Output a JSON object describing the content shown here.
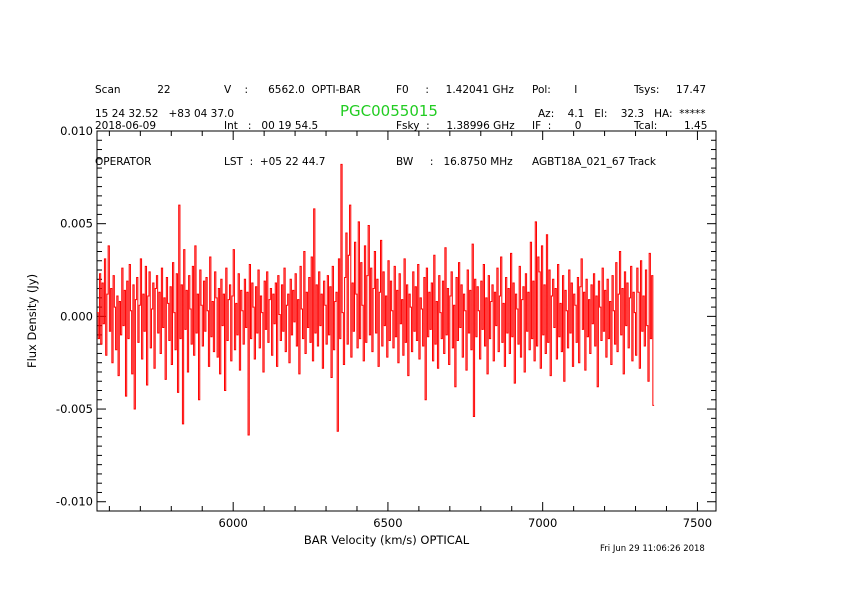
{
  "header": {
    "col1": [
      "Scan           22",
      "2018-06-09",
      "OPERATOR"
    ],
    "col2": [
      "V    :      6562.0  OPTI-BAR",
      "Int   :   00 19 54.5",
      "LST  :  +05 22 44.7"
    ],
    "col3": [
      "F0     :     1.42041 GHz",
      "Fsky  :     1.38996 GHz",
      "BW     :   16.8750 MHz"
    ],
    "col4": [
      "Pol:       I",
      "IF  :       0",
      "AGBT18A_021_67 Track"
    ],
    "col5": [
      "Tsys:     17.47",
      "Tcal:        1.45",
      ""
    ],
    "coords": "15 24 32.52   +83 04 37.0",
    "source": "PGC0055015",
    "azel": "Az:    4.1   El:    32.3   HA:  *****",
    "footer": "Fri Jun 29 11:06:26 2018"
  },
  "colors": {
    "trace": "#ff0000",
    "source": "#22cc22",
    "axes": "#000000"
  },
  "chart_data": {
    "type": "line",
    "xlabel": "BAR Velocity (km/s) OPTICAL",
    "ylabel": "Flux Density (Jy)",
    "xlim": [
      5560,
      7560
    ],
    "ylim": [
      -0.0105,
      0.01
    ],
    "xticks": [
      6000,
      6500,
      7000,
      7500
    ],
    "xtick_labels": [
      "6000",
      "6500",
      "7000",
      "7500"
    ],
    "yticks": [
      -0.01,
      -0.005,
      0.0,
      0.005,
      0.01
    ],
    "ytick_labels": [
      "-0.010",
      "-0.005",
      "0.000",
      "0.005",
      "0.010"
    ],
    "grid": false,
    "series": [
      {
        "x_start": 5560,
        "x_step": 4.0,
        "values": [
          0.0002,
          -0.0012,
          0.0023,
          -0.0015,
          0.0018,
          -0.0004,
          0.0031,
          -0.0021,
          0.0012,
          0.0038,
          -0.0008,
          0.0015,
          -0.0025,
          0.0022,
          0.0005,
          -0.0018,
          0.0011,
          -0.0032,
          0.0008,
          -0.001,
          0.0026,
          -0.0005,
          0.0014,
          -0.0043,
          0.0019,
          -0.0012,
          0.0028,
          0.0003,
          -0.0031,
          0.0017,
          -0.005,
          0.0009,
          0.0021,
          -0.0014,
          0.0006,
          0.0031,
          -0.0023,
          0.0012,
          -0.0008,
          0.0027,
          -0.0037,
          0.0011,
          0.0024,
          -0.0017,
          0.0004,
          0.0018,
          -0.0028,
          0.0015,
          0.0022,
          -0.0009,
          0.0013,
          -0.002,
          0.0026,
          -0.0006,
          0.001,
          -0.0034,
          0.0021,
          0.0007,
          -0.0013,
          0.0016,
          -0.0026,
          0.0029,
          0.0002,
          -0.0018,
          0.0023,
          -0.0041,
          0.006,
          -0.0012,
          0.0017,
          -0.0058,
          0.0036,
          -0.0007,
          0.0014,
          -0.003,
          0.0022,
          0.0004,
          -0.0015,
          0.0027,
          -0.0021,
          0.0038,
          -0.0009,
          0.0012,
          -0.0045,
          0.0025,
          0.0006,
          -0.0016,
          0.0019,
          -0.0008,
          0.0021,
          0.0003,
          -0.0027,
          0.0032,
          -0.0011,
          0.0008,
          -0.0019,
          0.0024,
          0.001,
          -0.0022,
          0.0015,
          -0.0031,
          0.002,
          -0.0005,
          0.0012,
          -0.004,
          0.0026,
          -0.0013,
          0.0009,
          0.0017,
          -0.0024,
          0.0011,
          0.0036,
          -0.0018,
          0.0007,
          -0.001,
          0.0023,
          -0.0029,
          0.0014,
          0.0003,
          -0.0015,
          0.002,
          -0.0006,
          0.0013,
          -0.0064,
          0.0028,
          -0.0012,
          0.0018,
          0.0005,
          -0.0023,
          0.0016,
          -0.0009,
          0.0025,
          -0.0017,
          0.0011,
          0.0002,
          -0.003,
          0.0019,
          -0.0007,
          0.0024,
          -0.0014,
          0.0009,
          0.0015,
          -0.0021,
          0.0012,
          -0.0004,
          0.0018,
          -0.0027,
          0.0022,
          0.0001,
          -0.0013,
          0.0017,
          -0.0008,
          0.0026,
          -0.0019,
          0.0006,
          0.0012,
          -0.0025,
          0.002,
          -0.001,
          0.0014,
          -0.0003,
          0.0023,
          -0.0016,
          0.0009,
          -0.0031,
          0.0027,
          0.0004,
          -0.0012,
          0.0035,
          -0.002,
          0.0013,
          -0.0006,
          0.0021,
          -0.0014,
          0.0032,
          -0.0024,
          0.0058,
          -0.0009,
          0.0017,
          -0.0016,
          0.0024,
          -0.0005,
          0.0012,
          -0.0028,
          0.0019,
          0.0006,
          -0.0015,
          0.0022,
          -0.001,
          0.0016,
          -0.0033,
          0.0027,
          -0.0018,
          0.0008,
          0.0013,
          -0.0062,
          0.0031,
          -0.0012,
          0.0082,
          0.0002,
          -0.0026,
          0.0021,
          0.0045,
          -0.0015,
          0.0033,
          0.006,
          -0.0022,
          0.0018,
          -0.0008,
          0.004,
          0.0012,
          -0.0017,
          0.0051,
          -0.0012,
          0.0029,
          0.0006,
          -0.0024,
          0.0038,
          -0.0014,
          0.0022,
          0.0049,
          -0.001,
          0.0026,
          -0.0019,
          0.0015,
          0.0035,
          -0.0009,
          0.002,
          -0.0027,
          0.0013,
          0.0041,
          -0.0016,
          0.0024,
          -0.0005,
          0.0011,
          -0.0022,
          0.003,
          -0.0013,
          0.0019,
          0.0003,
          -0.0017,
          0.0027,
          -0.0011,
          0.0014,
          -0.0025,
          0.0023,
          -0.0004,
          0.0009,
          -0.0021,
          0.0031,
          -0.0014,
          0.0017,
          -0.0032,
          0.0012,
          0.0005,
          -0.0019,
          0.0024,
          -0.0008,
          0.0016,
          -0.0013,
          0.0028,
          -0.0023,
          0.001,
          0.0004,
          -0.0016,
          0.0021,
          -0.0045,
          0.0026,
          -0.0011,
          0.0013,
          -0.0007,
          0.0018,
          -0.0024,
          0.0033,
          -0.0015,
          0.0008,
          -0.0028,
          0.0022,
          0.0002,
          -0.0012,
          0.0019,
          -0.002,
          0.0037,
          -0.001,
          0.0015,
          -0.0026,
          0.0011,
          0.0024,
          -0.0017,
          0.0006,
          -0.0038,
          0.0021,
          -0.0013,
          0.0029,
          -0.0006,
          0.0017,
          -0.0022,
          0.0012,
          0.0003,
          -0.0029,
          0.0025,
          -0.0009,
          0.0014,
          -0.0018,
          0.0039,
          -0.0054,
          0.002,
          -0.0011,
          0.0016,
          0.0003,
          -0.0023,
          0.0019,
          -0.0007,
          0.0028,
          -0.0016,
          0.001,
          -0.0031,
          0.0022,
          -0.0012,
          0.0008,
          0.0017,
          -0.0024,
          0.0013,
          -0.0005,
          0.0026,
          -0.0019,
          0.0011,
          0.0032,
          -0.0014,
          0.0007,
          -0.0027,
          0.0021,
          -0.0009,
          0.0015,
          -0.002,
          0.0034,
          -0.0011,
          0.0018,
          -0.0036,
          0.0012,
          0.0004,
          -0.0015,
          0.0027,
          -0.0022,
          0.0009,
          0.0016,
          -0.003,
          0.0023,
          -0.0008,
          0.0013,
          -0.0018,
          0.004,
          -0.0012,
          0.0019,
          -0.0024,
          0.0051,
          -0.0016,
          0.0032,
          0.0024,
          -0.0028,
          0.0038,
          -0.001,
          0.0017,
          -0.002,
          0.0044,
          -0.0014,
          0.0025,
          -0.0032,
          0.0011,
          0.002,
          -0.0006,
          0.0015,
          -0.0023,
          0.0028,
          -0.0011,
          0.0007,
          -0.0019,
          0.0022,
          -0.0035,
          0.0014,
          0.0003,
          -0.0017,
          0.0025,
          -0.0009,
          0.0018,
          -0.0027,
          0.0012,
          0.0006,
          -0.0014,
          0.0021,
          -0.0025,
          0.0016,
          0.0031,
          -0.0007,
          0.0013,
          -0.0029,
          0.002,
          -0.0011,
          0.0009,
          -0.002,
          0.0017,
          -0.0004,
          0.0023,
          -0.0016,
          0.0011,
          -0.0038,
          0.0019,
          0.0005,
          -0.0013,
          0.0026,
          -0.0008,
          0.0014,
          -0.0022,
          0.002,
          -0.0012,
          0.0008,
          -0.0026,
          0.0022,
          0.0003,
          -0.0015,
          0.0029,
          -0.0019,
          0.0012,
          0.0035,
          -0.001,
          0.0015,
          -0.0031,
          0.0024,
          -0.0005,
          0.0018,
          -0.0017,
          0.001,
          0.0027,
          -0.0024,
          0.0013,
          0.0002,
          -0.0021,
          0.0026,
          0.0013,
          -0.0028,
          0.003,
          -0.0008,
          0.0011,
          -0.0016,
          0.0025,
          -0.0005,
          -0.0035,
          0.0034,
          -0.0012,
          0.0022,
          -0.0048
        ]
      }
    ]
  }
}
